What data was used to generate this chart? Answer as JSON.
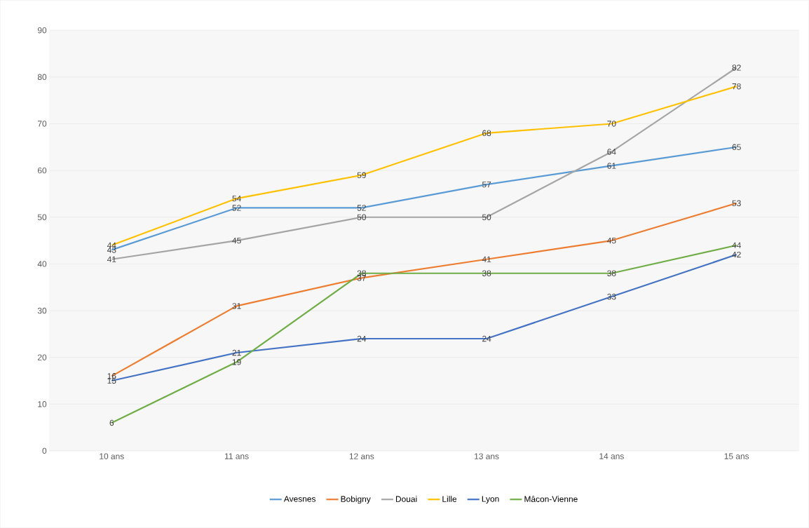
{
  "chart_data": {
    "type": "line",
    "categories": [
      "10 ans",
      "11 ans",
      "12 ans",
      "13 ans",
      "14 ans",
      "15 ans"
    ],
    "series": [
      {
        "name": "Avesnes",
        "color": "#5b9bd5",
        "values": [
          43,
          52,
          52,
          57,
          61,
          65
        ]
      },
      {
        "name": "Bobigny",
        "color": "#ed7d31",
        "values": [
          16,
          31,
          37,
          41,
          45,
          53
        ]
      },
      {
        "name": "Douai",
        "color": "#a5a5a5",
        "values": [
          41,
          45,
          50,
          50,
          64,
          82
        ]
      },
      {
        "name": "Lille",
        "color": "#ffc000",
        "values": [
          44,
          54,
          59,
          68,
          70,
          78
        ]
      },
      {
        "name": "Lyon",
        "color": "#4472c4",
        "values": [
          15,
          21,
          24,
          24,
          33,
          42
        ]
      },
      {
        "name": "Mâcon-Vienne",
        "color": "#70ad47",
        "values": [
          6,
          19,
          38,
          38,
          38,
          44
        ]
      }
    ],
    "ylim": [
      0,
      90
    ],
    "yticks": [
      0,
      10,
      20,
      30,
      40,
      50,
      60,
      70,
      80,
      90
    ],
    "grid": "y",
    "legend": "bottom",
    "data_labels": true,
    "marker": "none",
    "line_style": "solid"
  }
}
